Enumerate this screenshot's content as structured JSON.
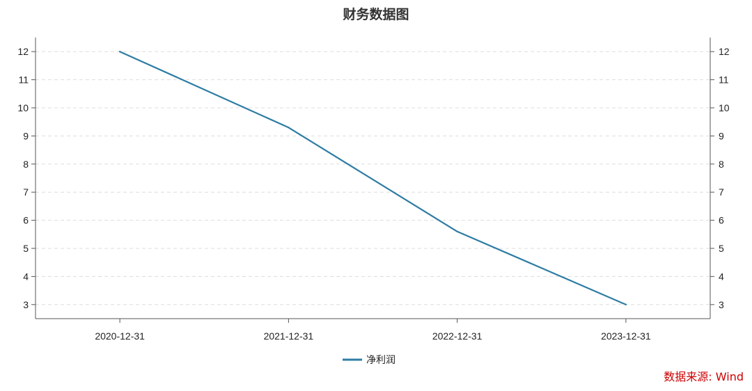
{
  "chart_data": {
    "type": "line",
    "title": "财务数据图",
    "categories": [
      "2020-12-31",
      "2021-12-31",
      "2022-12-31",
      "2023-12-31"
    ],
    "series": [
      {
        "name": "净利润",
        "values": [
          12.0,
          9.3,
          5.6,
          3.0
        ],
        "color": "#2e7ca4"
      }
    ],
    "ylim": [
      2.5,
      12.5
    ],
    "yticks": [
      3,
      4,
      5,
      6,
      7,
      8,
      9,
      10,
      11,
      12
    ],
    "dual_y_axis": true,
    "grid": "horizontal-dashed",
    "legend": "bottom-center"
  },
  "source": {
    "text": "数据来源: Wind",
    "color": "#cc0000"
  }
}
